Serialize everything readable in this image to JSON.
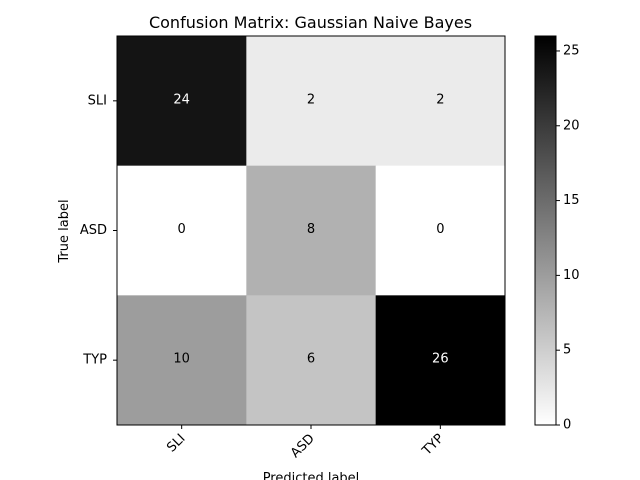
{
  "chart_data": {
    "type": "heatmap",
    "title": "Confusion Matrix: Gaussian Naive Bayes",
    "xlabel": "Predicted label",
    "ylabel": "True label",
    "x_categories": [
      "SLI",
      "ASD",
      "TYP"
    ],
    "y_categories": [
      "SLI",
      "ASD",
      "TYP"
    ],
    "values": [
      [
        24,
        2,
        2
      ],
      [
        0,
        8,
        0
      ],
      [
        10,
        6,
        26
      ]
    ],
    "colormap": "greys",
    "color_range": [
      0,
      26
    ],
    "colorbar_ticks": [
      0,
      5,
      10,
      15,
      20,
      25
    ],
    "grid": false
  }
}
